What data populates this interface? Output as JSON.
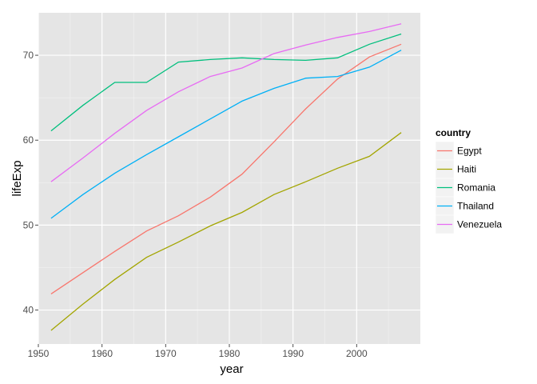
{
  "chart_data": {
    "type": "line",
    "xlabel": "year",
    "ylabel": "lifeExp",
    "xlim": [
      1950,
      2010
    ],
    "ylim": [
      36,
      75
    ],
    "x_ticks": [
      1950,
      1960,
      1970,
      1980,
      1990,
      2000
    ],
    "y_ticks": [
      40,
      50,
      60,
      70
    ],
    "grid": true,
    "legend": {
      "title": "country",
      "placement": "right"
    },
    "x": [
      1952,
      1957,
      1962,
      1967,
      1972,
      1977,
      1982,
      1987,
      1992,
      1997,
      2002,
      2007
    ],
    "series": [
      {
        "name": "Egypt",
        "color": "#F8766D",
        "values": [
          41.9,
          44.4,
          46.9,
          49.3,
          51.1,
          53.3,
          56.0,
          59.8,
          63.7,
          67.2,
          69.8,
          71.3
        ]
      },
      {
        "name": "Haiti",
        "color": "#A3A500",
        "values": [
          37.6,
          40.7,
          43.6,
          46.2,
          48.0,
          49.9,
          51.5,
          53.6,
          55.1,
          56.7,
          58.1,
          60.9
        ]
      },
      {
        "name": "Romania",
        "color": "#00BF7D",
        "values": [
          61.1,
          64.1,
          66.8,
          66.8,
          69.2,
          69.5,
          69.7,
          69.5,
          69.4,
          69.7,
          71.3,
          72.5
        ]
      },
      {
        "name": "Thailand",
        "color": "#00B0F6",
        "values": [
          50.8,
          53.6,
          56.1,
          58.3,
          60.4,
          62.5,
          64.6,
          66.1,
          67.3,
          67.5,
          68.6,
          70.6
        ]
      },
      {
        "name": "Venezuela",
        "color": "#E76BF3",
        "values": [
          55.1,
          57.9,
          60.8,
          63.5,
          65.7,
          67.5,
          68.5,
          70.2,
          71.2,
          72.1,
          72.8,
          73.7
        ]
      }
    ]
  }
}
